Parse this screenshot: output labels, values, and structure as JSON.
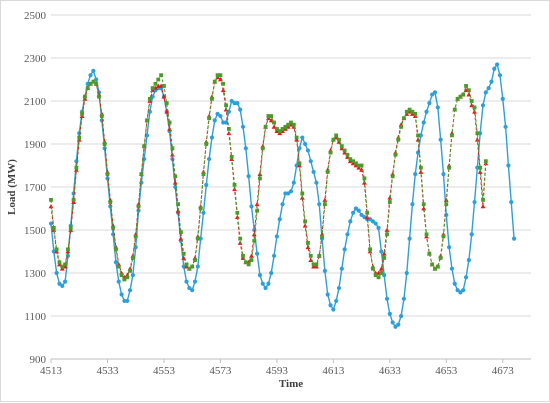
{
  "chart_data": {
    "type": "line",
    "title": "",
    "xlabel": "Time",
    "ylabel": "Load (MW)",
    "xlim": [
      4513,
      4683
    ],
    "ylim": [
      900,
      2500
    ],
    "x_ticks": [
      4513,
      4533,
      4553,
      4573,
      4593,
      4613,
      4633,
      4653,
      4673
    ],
    "y_ticks": [
      900,
      1100,
      1300,
      1500,
      1700,
      1900,
      2100,
      2300,
      2500
    ],
    "grid": "horizontal",
    "legend": "none",
    "x_start": 4513,
    "series": [
      {
        "color": "#2e9fd8",
        "marker": "circle",
        "line": "solid",
        "values": [
          1530,
          1400,
          1300,
          1250,
          1240,
          1260,
          1380,
          1520,
          1670,
          1820,
          1950,
          2050,
          2120,
          2180,
          2220,
          2240,
          2200,
          2140,
          2010,
          1880,
          1740,
          1610,
          1480,
          1350,
          1260,
          1200,
          1170,
          1170,
          1220,
          1290,
          1420,
          1590,
          1720,
          1830,
          1940,
          2050,
          2120,
          2150,
          2160,
          2160,
          2120,
          2050,
          1960,
          1830,
          1700,
          1580,
          1450,
          1330,
          1260,
          1230,
          1220,
          1260,
          1330,
          1460,
          1580,
          1710,
          1830,
          1930,
          2010,
          2040,
          2030,
          2000,
          2000,
          2050,
          2100,
          2090,
          2090,
          2060,
          1980,
          1880,
          1750,
          1610,
          1500,
          1390,
          1290,
          1250,
          1230,
          1250,
          1300,
          1380,
          1470,
          1550,
          1620,
          1670,
          1670,
          1680,
          1720,
          1800,
          1880,
          1930,
          1900,
          1870,
          1820,
          1770,
          1720,
          1620,
          1460,
          1310,
          1200,
          1150,
          1130,
          1170,
          1230,
          1320,
          1410,
          1480,
          1540,
          1580,
          1600,
          1590,
          1570,
          1560,
          1550,
          1550,
          1540,
          1530,
          1510,
          1400,
          1290,
          1180,
          1110,
          1070,
          1050,
          1060,
          1100,
          1180,
          1300,
          1460,
          1620,
          1760,
          1860,
          1940,
          2000,
          2050,
          2090,
          2130,
          2140,
          2070,
          1920,
          1760,
          1570,
          1420,
          1320,
          1250,
          1220,
          1210,
          1220,
          1280,
          1360,
          1480,
          1630,
          1790,
          1950,
          2080,
          2140,
          2160,
          2190,
          2250,
          2270,
          2220,
          2110,
          1980,
          1800,
          1630,
          1460
        ]
      },
      {
        "color": "#e41a1c",
        "marker": "triangle",
        "line": "dash",
        "values": [
          1610,
          1500,
          1400,
          1340,
          1320,
          1330,
          1400,
          1500,
          1630,
          1780,
          1920,
          2030,
          2110,
          2160,
          2180,
          2190,
          2180,
          2130,
          2040,
          1910,
          1770,
          1640,
          1520,
          1420,
          1340,
          1300,
          1280,
          1290,
          1320,
          1380,
          1480,
          1620,
          1760,
          1890,
          2010,
          2100,
          2150,
          2160,
          2170,
          2170,
          2120,
          2050,
          1970,
          1850,
          1720,
          1590,
          1460,
          1370,
          1330,
          1320,
          1330,
          1370,
          1470,
          1610,
          1770,
          1910,
          2030,
          2120,
          2190,
          2210,
          2200,
          2150,
          2060,
          1950,
          1830,
          1690,
          1560,
          1440,
          1370,
          1350,
          1350,
          1380,
          1480,
          1620,
          1760,
          1890,
          1980,
          2020,
          2010,
          1980,
          1960,
          1950,
          1960,
          1970,
          1980,
          1990,
          1980,
          1920,
          1800,
          1650,
          1520,
          1420,
          1360,
          1330,
          1330,
          1380,
          1480,
          1640,
          1780,
          1870,
          1920,
          1930,
          1910,
          1880,
          1860,
          1840,
          1820,
          1810,
          1800,
          1790,
          1780,
          1720,
          1560,
          1400,
          1330,
          1300,
          1300,
          1320,
          1390,
          1500,
          1650,
          1760,
          1860,
          1930,
          1990,
          2020,
          2040,
          2050,
          2040,
          2030,
          1920,
          1770,
          1600,
          1470,
          1390,
          1340,
          1320,
          1330,
          1380,
          1480,
          1640,
          1800,
          1950,
          2060,
          2110,
          2120,
          2130,
          2150,
          2130,
          2080,
          2050,
          1920,
          1770,
          1610,
          1810
        ]
      },
      {
        "color": "#4c9a2a",
        "marker": "square",
        "line": "dash",
        "values": [
          1640,
          1510,
          1410,
          1350,
          1330,
          1340,
          1410,
          1510,
          1640,
          1790,
          1930,
          2040,
          2120,
          2160,
          2180,
          2190,
          2180,
          2120,
          2030,
          1900,
          1760,
          1630,
          1510,
          1410,
          1330,
          1290,
          1270,
          1280,
          1310,
          1370,
          1470,
          1610,
          1760,
          1890,
          2010,
          2110,
          2160,
          2180,
          2200,
          2220,
          2170,
          2090,
          2000,
          1880,
          1750,
          1620,
          1490,
          1390,
          1340,
          1320,
          1330,
          1360,
          1460,
          1600,
          1760,
          1900,
          2020,
          2110,
          2190,
          2220,
          2220,
          2180,
          2080,
          1970,
          1840,
          1710,
          1580,
          1460,
          1380,
          1350,
          1340,
          1360,
          1450,
          1590,
          1740,
          1880,
          1980,
          2030,
          2030,
          2000,
          1970,
          1960,
          1970,
          1980,
          1990,
          2000,
          1990,
          1930,
          1810,
          1670,
          1540,
          1440,
          1380,
          1340,
          1340,
          1380,
          1470,
          1620,
          1770,
          1860,
          1920,
          1940,
          1920,
          1890,
          1870,
          1850,
          1830,
          1820,
          1810,
          1800,
          1800,
          1740,
          1580,
          1410,
          1320,
          1290,
          1280,
          1300,
          1370,
          1480,
          1630,
          1750,
          1850,
          1920,
          1980,
          2020,
          2050,
          2060,
          2050,
          2040,
          1940,
          1790,
          1620,
          1480,
          1390,
          1340,
          1320,
          1330,
          1370,
          1470,
          1620,
          1790,
          1940,
          2060,
          2110,
          2120,
          2130,
          2170,
          2150,
          2100,
          2070,
          1950,
          1790,
          1640,
          1820
        ]
      }
    ]
  }
}
